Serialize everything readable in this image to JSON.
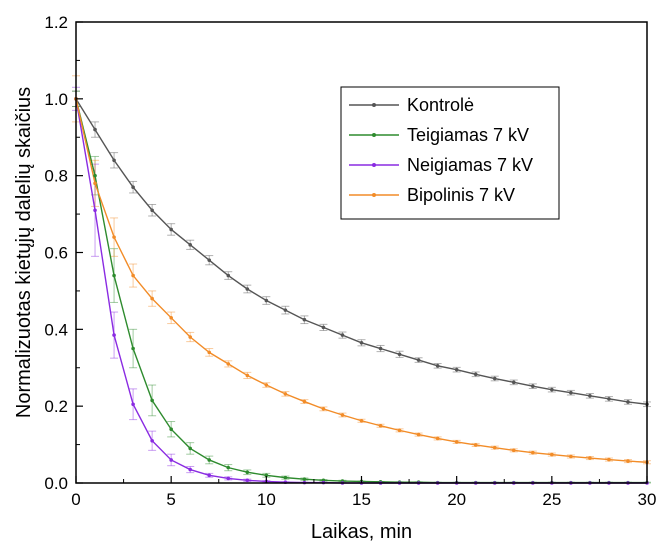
{
  "chart_data": {
    "type": "line",
    "title": "",
    "xlabel": "Laikas, min",
    "ylabel": "Normalizuotas kietųjų dalelių skaičius",
    "xlim": [
      0,
      30
    ],
    "ylim": [
      0,
      1.2
    ],
    "x_ticks": [
      "0",
      "5",
      "10",
      "15",
      "20",
      "25",
      "30"
    ],
    "y_ticks": [
      "0.0",
      "0.2",
      "0.4",
      "0.6",
      "0.8",
      "1.0",
      "1.2"
    ],
    "grid": false,
    "legend_position": "top-right",
    "x": [
      0,
      1,
      2,
      3,
      4,
      5,
      6,
      7,
      8,
      9,
      10,
      11,
      12,
      13,
      14,
      15,
      16,
      17,
      18,
      19,
      20,
      21,
      22,
      23,
      24,
      25,
      26,
      27,
      28,
      29,
      30
    ],
    "series": [
      {
        "name": "Kontrolė",
        "color": "#555555",
        "values": [
          1.0,
          0.92,
          0.84,
          0.77,
          0.71,
          0.66,
          0.62,
          0.58,
          0.54,
          0.505,
          0.475,
          0.45,
          0.425,
          0.405,
          0.385,
          0.365,
          0.35,
          0.335,
          0.32,
          0.305,
          0.295,
          0.283,
          0.272,
          0.262,
          0.252,
          0.243,
          0.235,
          0.227,
          0.219,
          0.211,
          0.205
        ],
        "errors": [
          0.02,
          0.02,
          0.02,
          0.015,
          0.015,
          0.015,
          0.012,
          0.012,
          0.01,
          0.01,
          0.01,
          0.01,
          0.01,
          0.008,
          0.008,
          0.008,
          0.008,
          0.008,
          0.006,
          0.006,
          0.006,
          0.006,
          0.006,
          0.006,
          0.006,
          0.006,
          0.006,
          0.006,
          0.006,
          0.006,
          0.006
        ]
      },
      {
        "name": "Teigiamas 7 kV",
        "color": "#2e8b2e",
        "values": [
          1.0,
          0.8,
          0.54,
          0.35,
          0.215,
          0.14,
          0.09,
          0.06,
          0.04,
          0.028,
          0.02,
          0.014,
          0.01,
          0.007,
          0.005,
          0.004,
          0.003,
          0.002,
          0.002,
          0.001,
          0.001,
          0.001,
          0.001,
          0.001,
          0.001,
          0.001,
          0.001,
          0.001,
          0.001,
          0.001,
          0.001
        ],
        "errors": [
          0.02,
          0.05,
          0.07,
          0.05,
          0.04,
          0.02,
          0.015,
          0.01,
          0.008,
          0.006,
          0.005,
          0.004,
          0.003,
          0.002,
          0.002,
          0.001,
          0.001,
          0.001,
          0.001,
          0.001,
          0.001,
          0.001,
          0.001,
          0.001,
          0.001,
          0.001,
          0.001,
          0.001,
          0.001,
          0.001,
          0.001
        ]
      },
      {
        "name": "Neigiamas 7 kV",
        "color": "#8a2be2",
        "values": [
          1.0,
          0.71,
          0.385,
          0.205,
          0.11,
          0.06,
          0.035,
          0.02,
          0.012,
          0.007,
          0.004,
          0.002,
          0.001,
          0.001,
          0.0,
          0.0,
          0.0,
          0.0,
          0.0,
          0.0,
          0.0,
          0.0,
          0.0,
          0.0,
          0.0,
          0.0,
          0.0,
          0.0,
          0.0,
          0.0,
          0.0
        ],
        "errors": [
          0.03,
          0.12,
          0.06,
          0.04,
          0.025,
          0.015,
          0.008,
          0.005,
          0.004,
          0.003,
          0.002,
          0.001,
          0.001,
          0.001,
          0.0,
          0.0,
          0.0,
          0.0,
          0.0,
          0.0,
          0.0,
          0.0,
          0.0,
          0.0,
          0.0,
          0.0,
          0.0,
          0.0,
          0.0,
          0.0,
          0.0
        ]
      },
      {
        "name": "Bipolinis 7 kV",
        "color": "#f28c28",
        "values": [
          1.0,
          0.78,
          0.64,
          0.54,
          0.48,
          0.43,
          0.38,
          0.34,
          0.31,
          0.28,
          0.255,
          0.232,
          0.212,
          0.193,
          0.177,
          0.162,
          0.149,
          0.137,
          0.126,
          0.116,
          0.107,
          0.099,
          0.092,
          0.085,
          0.079,
          0.074,
          0.069,
          0.065,
          0.061,
          0.057,
          0.054
        ],
        "errors": [
          0.06,
          0.06,
          0.05,
          0.03,
          0.02,
          0.015,
          0.012,
          0.01,
          0.008,
          0.008,
          0.006,
          0.006,
          0.005,
          0.005,
          0.005,
          0.004,
          0.004,
          0.004,
          0.004,
          0.004,
          0.004,
          0.004,
          0.004,
          0.004,
          0.004,
          0.004,
          0.004,
          0.004,
          0.004,
          0.004,
          0.004
        ]
      }
    ]
  }
}
